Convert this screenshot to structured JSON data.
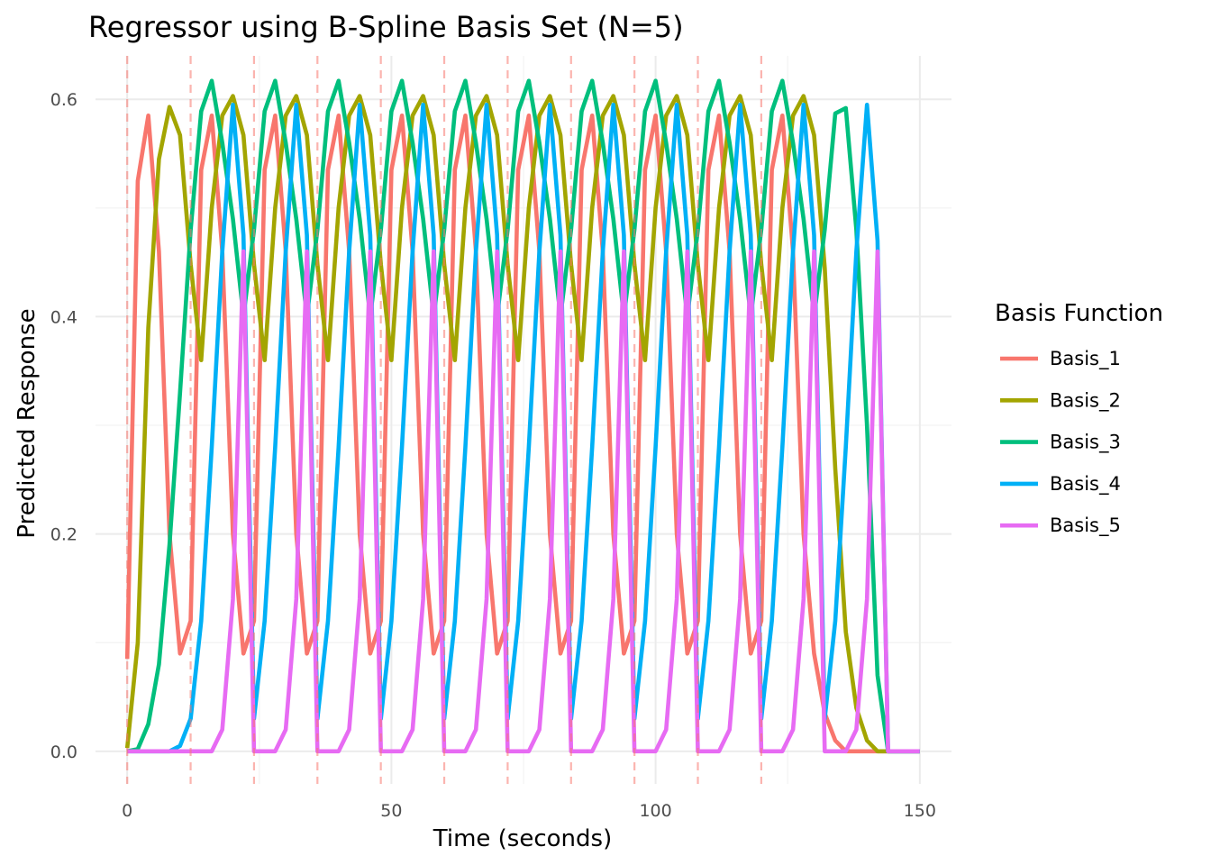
{
  "chart_data": {
    "type": "line",
    "title": "Regressor using B-Spline Basis Set (N=5)",
    "xlabel": "Time (seconds)",
    "ylabel": "Predicted Response",
    "xlim": [
      -6,
      156
    ],
    "ylim": [
      -0.03,
      0.64
    ],
    "x_ticks": [
      0,
      50,
      100,
      150
    ],
    "x_tick_labels": [
      "0",
      "50",
      "100",
      "150"
    ],
    "y_ticks": [
      0.0,
      0.2,
      0.4,
      0.6
    ],
    "y_tick_labels": [
      "0.0",
      "0.2",
      "0.4",
      "0.6"
    ],
    "grid": true,
    "onsets": [
      0,
      12,
      24,
      36,
      48,
      60,
      72,
      84,
      96,
      108,
      120
    ],
    "onset_line_color": "#F8766D",
    "onset_line_style": "dashed",
    "legend": {
      "title": "Basis Function",
      "position": "right"
    },
    "profile_time_step": 2,
    "profile_duration": 24,
    "series": [
      {
        "name": "Basis_1",
        "color": "#F8766D",
        "profile": [
          0.085,
          0.525,
          0.585,
          0.46,
          0.2,
          0.09,
          0.035,
          0.01,
          0.0,
          0.0,
          0.0,
          0.0,
          0.0
        ]
      },
      {
        "name": "Basis_2",
        "color": "#A3A500",
        "profile": [
          0.003,
          0.1,
          0.39,
          0.545,
          0.593,
          0.567,
          0.445,
          0.26,
          0.11,
          0.04,
          0.01,
          0.0,
          0.0
        ]
      },
      {
        "name": "Basis_3",
        "color": "#00BF7D",
        "profile": [
          0.0,
          0.002,
          0.025,
          0.08,
          0.19,
          0.33,
          0.48,
          0.587,
          0.592,
          0.48,
          0.3,
          0.07,
          0.0
        ]
      },
      {
        "name": "Basis_4",
        "color": "#00B0F6",
        "profile": [
          0.0,
          0.0,
          0.0,
          0.0,
          0.0,
          0.005,
          0.03,
          0.12,
          0.28,
          0.46,
          0.595,
          0.47,
          0.0
        ]
      },
      {
        "name": "Basis_5",
        "color": "#E76BF3",
        "profile": [
          0.0,
          0.0,
          0.0,
          0.0,
          0.0,
          0.0,
          0.0,
          0.0,
          0.0,
          0.02,
          0.14,
          0.46,
          0.0
        ]
      }
    ]
  }
}
